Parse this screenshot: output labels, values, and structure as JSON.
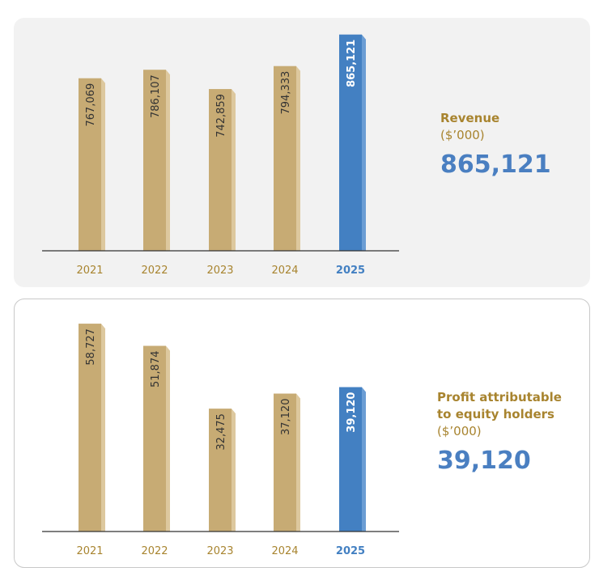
{
  "colors": {
    "bar": "#c7ab74",
    "bar_side": "#ddc89e",
    "highlight": "#4380c2",
    "highlight_side": "#6b9dd4",
    "year": "#a8842f",
    "axis": "#333333"
  },
  "chart_data": [
    {
      "type": "bar",
      "categories": [
        "2021",
        "2022",
        "2023",
        "2024",
        "2025"
      ],
      "values": [
        767069,
        786107,
        742859,
        794333,
        865121
      ],
      "value_labels": [
        "767,069",
        "786,107",
        "742,859",
        "794,333",
        "865,121"
      ],
      "highlight": "2025",
      "ylim": [
        380000,
        870000
      ],
      "grid": false,
      "title": "Revenue",
      "unit": "($’000)",
      "headline": "865,121"
    },
    {
      "type": "bar",
      "categories": [
        "2021",
        "2022",
        "2023",
        "2024",
        "2025"
      ],
      "values": [
        58727,
        51874,
        32475,
        37120,
        39120
      ],
      "value_labels": [
        "58,727",
        "51,874",
        "32,475",
        "37,120",
        "39,120"
      ],
      "highlight": "2025",
      "ylim": [
        -5500,
        62000
      ],
      "grid": false,
      "title_lines": [
        "Profit attributable",
        "to equity holders"
      ],
      "unit": "($’000)",
      "headline": "39,120"
    }
  ]
}
